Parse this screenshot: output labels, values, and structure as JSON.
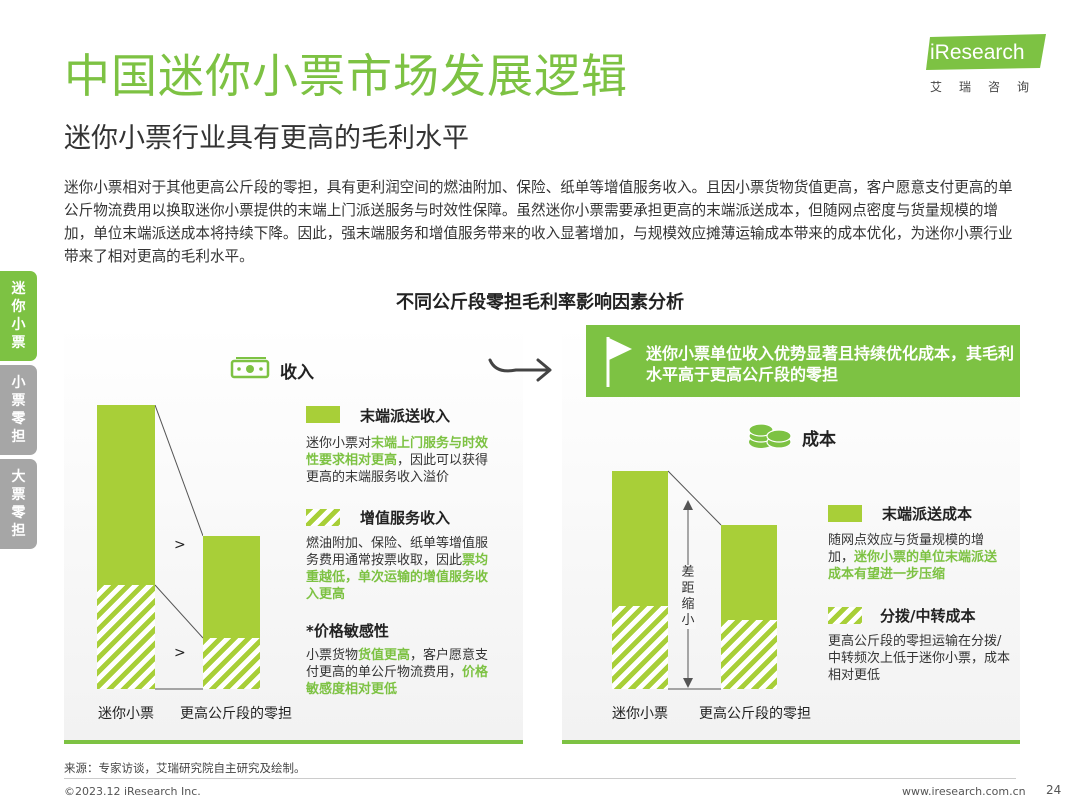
{
  "header": {
    "title": "中国迷你小票市场发展逻辑",
    "subtitle": "迷你小票行业具有更高的毛利水平"
  },
  "logo": {
    "brand": "iResearch",
    "cn": "艾瑞咨询"
  },
  "intro": "迷你小票相对于其他更高公斤段的零担，具有更利润空间的燃油附加、保险、纸单等增值服务收入。且因小票货物货值更高，客户愿意支付更高的单公斤物流费用以换取迷你小票提供的末端上门派送服务与时效性保障。虽然迷你小票需要承担更高的末端派送成本，但随网点密度与货量规模的增加，单位末端派送成本将持续下降。因此，强末端服务和增值服务带来的收入显著增加，与规模效应摊薄运输成本带来的成本优化，为迷你小票行业带来了相对更高的毛利水平。",
  "side_tabs": [
    {
      "label": "迷你小票"
    },
    {
      "label": "小票零担"
    },
    {
      "label": "大票零担"
    }
  ],
  "figure": {
    "title": "不同公斤段零担毛利率影响因素分析",
    "revenue": {
      "header": "收入",
      "bar_labels": [
        "迷你小票",
        "更高公斤段的零担"
      ],
      "comparators": [
        ">",
        ">"
      ],
      "legend": [
        {
          "title": "末端派送收入",
          "desc": [
            "迷你小票对",
            "末端上门服务与时效性要求相对更高",
            "，因此可以获得更高的末端服务收入溢价"
          ]
        },
        {
          "title": "增值服务收入",
          "desc": [
            "燃油附加、保险、纸单等增值服务费用通常按票收取，因此",
            "票均重越低，单次运输的增值服务收入更高",
            ""
          ]
        },
        {
          "title": "*价格敏感性",
          "desc": [
            "小票货物",
            "货值更高",
            "，客户愿意支付更高的单公斤物流费用，",
            "价格敏感度相对更低"
          ]
        }
      ]
    },
    "conclusion": "迷你小票单位收入优势显著且持续优化成本，其毛利水平高于更高公斤段的零担",
    "cost": {
      "header": "成本",
      "gap_label": "差距缩小",
      "bar_labels": [
        "迷你小票",
        "更高公斤段的零担"
      ],
      "legend": [
        {
          "title": "末端派送成本",
          "desc": [
            "随网点效应与货量规模的增加，",
            "迷你小票的单位末端派送成本有望进一步压缩",
            ""
          ]
        },
        {
          "title": "分拨/中转成本",
          "desc": [
            "更高公斤段的零担运输在分拨/中转频次上低于迷你小票，成本相对更低"
          ]
        }
      ]
    }
  },
  "footer": {
    "source": "来源：专家访谈，艾瑞研究院自主研究及绘制。",
    "copyright": "©2023.12 iResearch Inc.",
    "website": "www.iresearch.com.cn",
    "page": "24"
  },
  "colors": {
    "accent": "#7dc243",
    "bar": "#a8cf38",
    "tab_active": "#7dc243",
    "tab_inactive": "#a6a6a6"
  }
}
